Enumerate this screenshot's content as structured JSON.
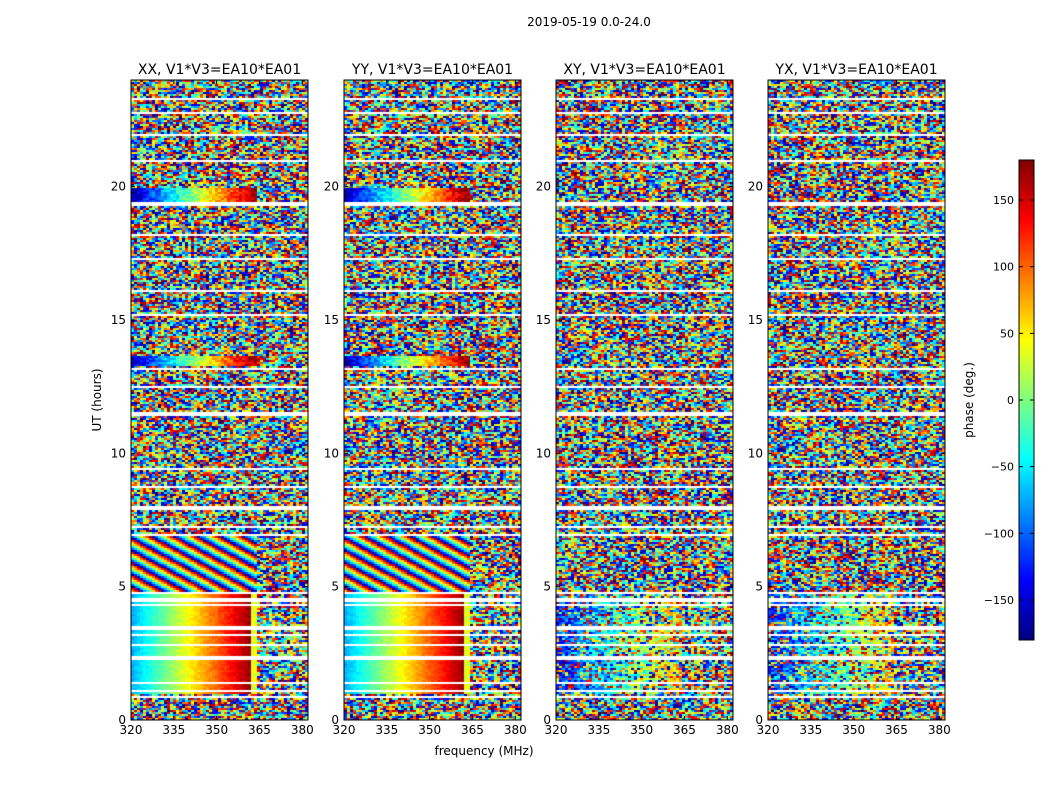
{
  "figure": {
    "suptitle": "2019-05-19 0.0-24.0",
    "colormap_colors": [
      "#00007f",
      "#0000ff",
      "#007fff",
      "#00ffff",
      "#7fff7f",
      "#ffff00",
      "#ff7f00",
      "#ff0000",
      "#7f0000"
    ],
    "gap_color": "#ffffff"
  },
  "chart_data": {
    "type": "heatmap",
    "description_of_values": "phase (deg.) vs frequency and UT for four polarization products",
    "xlabel": "frequency (MHz)",
    "ylabel": "UT (hours)",
    "xlim": [
      320,
      382
    ],
    "ylim": [
      0,
      24
    ],
    "xticks": [
      320,
      335,
      350,
      365,
      380
    ],
    "yticks": [
      0,
      5,
      10,
      15,
      20
    ],
    "colorbar": {
      "label": "phase (deg.)",
      "range": [
        -180,
        180
      ],
      "ticks": [
        150,
        100,
        50,
        0,
        -50,
        -100,
        -150
      ]
    },
    "panels": [
      {
        "title": "XX, V1*V3=EA10*EA01",
        "show_ylabel": true,
        "show_xlabel": false
      },
      {
        "title": "YY, V1*V3=EA10*EA01",
        "show_ylabel": false,
        "show_xlabel": true
      },
      {
        "title": "XY, V1*V3=EA10*EA01",
        "show_ylabel": false,
        "show_xlabel": false
      },
      {
        "title": "YX, V1*V3=EA10*EA01",
        "show_ylabel": false,
        "show_xlabel": false
      }
    ],
    "flagged_ut_gaps_hours": [
      0.9,
      1.1,
      1.45,
      2.35,
      2.85,
      3.2,
      3.5,
      4.35,
      4.55,
      4.8,
      6.95,
      7.3,
      8.0,
      8.8,
      9.45,
      11.5,
      12.5,
      13.2,
      15.25,
      16.1,
      17.3,
      18.2,
      19.4,
      21.0,
      22.0,
      22.8,
      23.3
    ],
    "structured_segments": [
      {
        "panels": [
          "XX",
          "YY"
        ],
        "ut_range": [
          1.0,
          4.8
        ],
        "pattern": "smooth phase ramp",
        "freq_break_mhz": 364
      },
      {
        "panels": [
          "XX",
          "YY"
        ],
        "ut_range": [
          4.8,
          6.9
        ],
        "pattern": "diagonal fringes",
        "freq_break_mhz": 364
      },
      {
        "panels": [
          "XX",
          "YY"
        ],
        "ut_range": [
          19.4,
          20.0
        ],
        "pattern": "phase ramp band",
        "freq_break_mhz": 364
      },
      {
        "panels": [
          "XX",
          "YY"
        ],
        "ut_range": [
          13.3,
          13.7
        ],
        "pattern": "phase ramp band",
        "freq_break_mhz": 364
      },
      {
        "panels": [
          "XY",
          "YX"
        ],
        "ut_range": [
          1.0,
          4.8
        ],
        "pattern": "weak phase gradient with noise",
        "freq_break_mhz": 364
      }
    ]
  }
}
